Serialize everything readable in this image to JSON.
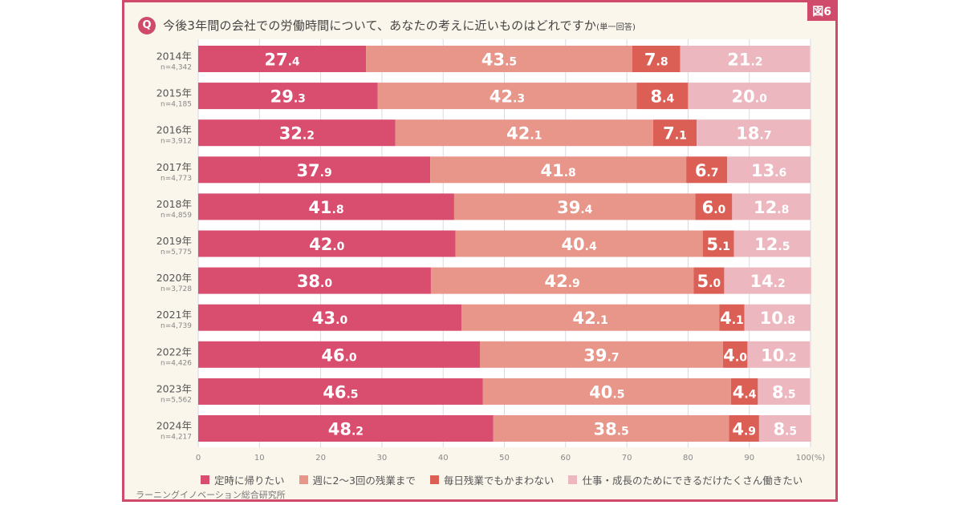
{
  "figure_label": "図6",
  "question_mark": "Q",
  "question": "今後3年間の会社での労働時間について、あなたの考えに近いものはどれですか",
  "question_note": "(単一回答)",
  "source": "ラーニングイノベーション総合研究所",
  "chart_data": {
    "type": "bar",
    "orientation": "horizontal",
    "stacked": true,
    "title": "今後3年間の会社での労働時間について、あなたの考えに近いものはどれですか(単一回答)",
    "xlabel": "",
    "ylabel": "",
    "xlim": [
      0,
      100
    ],
    "x_ticks": [
      "0",
      "10",
      "20",
      "30",
      "40",
      "50",
      "60",
      "70",
      "80",
      "90",
      "100(%)"
    ],
    "grid": true,
    "legend_position": "bottom",
    "categories": [
      "2014年",
      "2015年",
      "2016年",
      "2017年",
      "2018年",
      "2019年",
      "2020年",
      "2021年",
      "2022年",
      "2023年",
      "2024年"
    ],
    "sample_sizes": [
      "n=4,342",
      "n=4,185",
      "n=3,912",
      "n=4,773",
      "n=4,859",
      "n=5,775",
      "n=3,728",
      "n=4,739",
      "n=4,426",
      "n=5,562",
      "n=4,217"
    ],
    "series": [
      {
        "name": "定時に帰りたい",
        "color": "#d94d6f",
        "values": [
          27.4,
          29.3,
          32.2,
          37.9,
          41.8,
          42.0,
          38.0,
          43.0,
          46.0,
          46.5,
          48.2
        ]
      },
      {
        "name": "週に2～3回の残業まで",
        "color": "#e8958a",
        "values": [
          43.5,
          42.3,
          42.1,
          41.8,
          39.4,
          40.4,
          42.9,
          42.1,
          39.7,
          40.5,
          38.5
        ]
      },
      {
        "name": "毎日残業でもかまわない",
        "color": "#dc5f55",
        "values": [
          7.8,
          8.4,
          7.1,
          6.7,
          6.0,
          5.1,
          5.0,
          4.1,
          4.0,
          4.4,
          4.9
        ]
      },
      {
        "name": "仕事・成長のためにできるだけたくさん働きたい",
        "color": "#ecb7bf",
        "values": [
          21.2,
          20.0,
          18.7,
          13.6,
          12.8,
          12.5,
          14.2,
          10.8,
          10.2,
          8.5,
          8.5
        ]
      }
    ]
  }
}
